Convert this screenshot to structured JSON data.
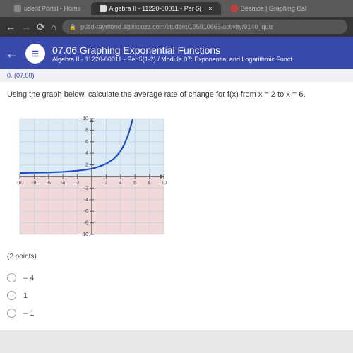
{
  "tabs": {
    "left": "udent Portal - Home",
    "active": "Algebra II - 11220-00011 - Per 5(",
    "right": "Desmos | Graphing Cal"
  },
  "nav": {
    "url": "pusd-raymond.agilixbuzz.com/student/135910663/activity/9140_quiz"
  },
  "course": {
    "title": "07.06 Graphing Exponential Functions",
    "subtitle": "Algebra II - 11220-00011 - Per 5(1-2) / Module 07: Exponential and Logarithmic Funct"
  },
  "question": {
    "meta": "0. (07.00)",
    "text": "Using the graph below, calculate the average rate of change for f(x) from x = 2 to x = 6.",
    "points": "(2 points)"
  },
  "graph": {
    "xlim": [
      -10,
      10
    ],
    "ylim": [
      -10,
      10
    ],
    "tick_step": 2,
    "grid_color": "#b8d0e0",
    "axis_color": "#555",
    "curve_color": "#2050c0",
    "curve_width": 2.2,
    "bg_top": "#dceaf5",
    "bg_bottom": "#f0d8d8",
    "tick_labels_x": [
      "-10",
      "-8",
      "-6",
      "-4",
      "-2",
      "",
      "2",
      "4",
      "6",
      "8",
      "10"
    ],
    "tick_labels_y": [
      "-10",
      "-8",
      "-6",
      "-4",
      "-2",
      "",
      "2",
      "4",
      "6",
      "8",
      "10"
    ],
    "curve_points": [
      [
        -10,
        0.6
      ],
      [
        -8,
        0.65
      ],
      [
        -6,
        0.7
      ],
      [
        -4,
        0.8
      ],
      [
        -2,
        1.0
      ],
      [
        -1,
        1.15
      ],
      [
        0,
        1.35
      ],
      [
        1,
        1.7
      ],
      [
        2,
        2.2
      ],
      [
        3,
        3.0
      ],
      [
        3.5,
        3.6
      ],
      [
        4,
        4.4
      ],
      [
        4.5,
        5.5
      ],
      [
        5,
        7.0
      ],
      [
        5.4,
        8.6
      ],
      [
        5.7,
        10.0
      ]
    ]
  },
  "options": {
    "a": "– 4",
    "b": "1",
    "c": "– 1"
  },
  "colors": {
    "header_bg": "#3949ab"
  }
}
